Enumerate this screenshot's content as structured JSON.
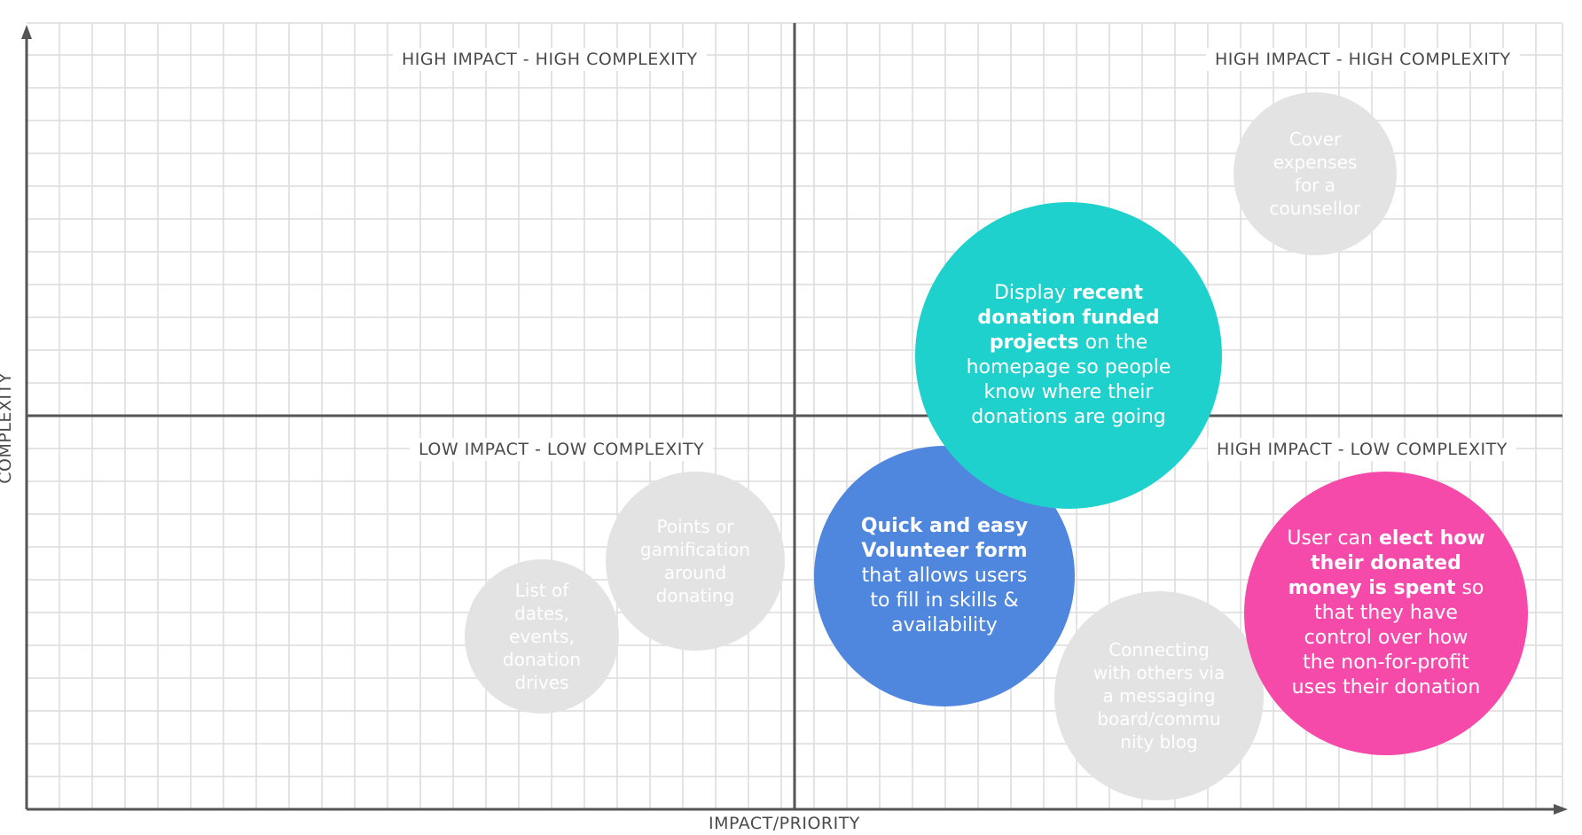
{
  "axes": {
    "x_label": "IMPACT/PRIORITY",
    "y_label": "COMPLEXITY"
  },
  "quadrants": {
    "top_left": "HIGH IMPACT - HIGH COMPLEXITY",
    "top_right": "HIGH IMPACT - HIGH COMPLEXITY",
    "bottom_left": "LOW IMPACT - LOW COMPLEXITY",
    "bottom_right": "HIGH IMPACT - LOW COMPLEXITY"
  },
  "colors": {
    "grid": "#dcdcdc",
    "axis": "#555555",
    "grey_bubble": "#e3e3e3",
    "teal_bubble": "#1fd1cc",
    "blue_bubble": "#4f86de",
    "pink_bubble": "#f54aa9"
  },
  "bubbles": {
    "counsellor": {
      "lines": [
        "Cover",
        "expenses",
        "for a",
        "counsellor"
      ]
    },
    "projects": {
      "segments": [
        {
          "text": "Display ",
          "bold": false
        },
        {
          "text": "recent donation funded projects",
          "bold": true
        },
        {
          "text": " on the homepage so people know where their donations are going",
          "bold": false
        }
      ]
    },
    "points": {
      "lines": [
        "Points or",
        "gamification",
        "around",
        "donating"
      ]
    },
    "dates": {
      "lines": [
        "List of",
        "dates,",
        "events,",
        "donation",
        "drives"
      ]
    },
    "volunteer": {
      "segments": [
        {
          "text": "Quick and easy Volunteer form",
          "bold": true
        },
        {
          "text": " that allows users to fill in skills & availability",
          "bold": false
        }
      ]
    },
    "connecting": {
      "lines": [
        "Connecting",
        "with others via",
        "a messaging",
        "board/commu",
        "nity blog"
      ]
    },
    "elect": {
      "segments": [
        {
          "text": "User can ",
          "bold": false
        },
        {
          "text": "elect how their donated money is spent",
          "bold": true
        },
        {
          "text": " so that they have control over how the non-for-profit uses their donation",
          "bold": false
        }
      ]
    }
  }
}
